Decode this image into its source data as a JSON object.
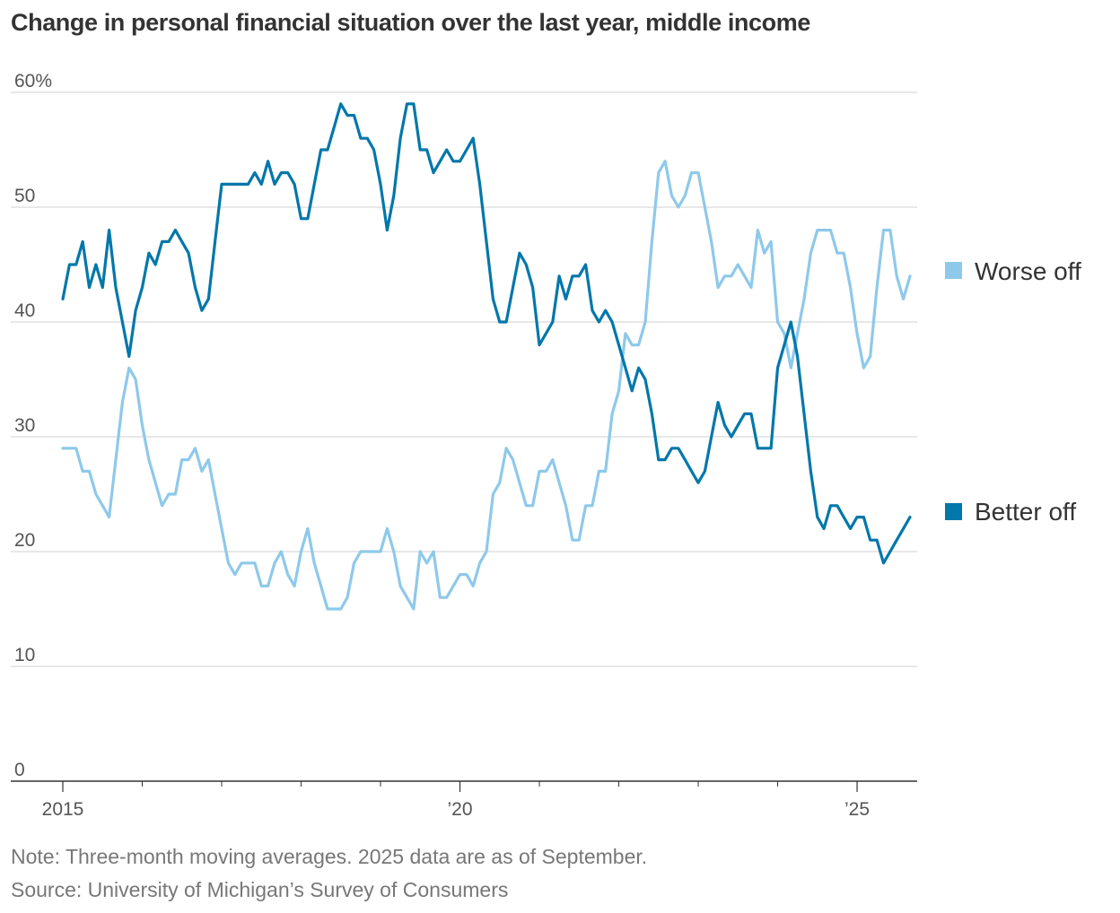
{
  "chart_data": {
    "type": "line",
    "title": "Change in personal financial situation over the last year, middle income",
    "y_ticks": [
      "0",
      "10",
      "20",
      "30",
      "40",
      "50",
      "60%"
    ],
    "y_tick_values": [
      0,
      10,
      20,
      30,
      40,
      50,
      60
    ],
    "ylim": [
      0,
      60
    ],
    "xlim": [
      2015,
      2025.92
    ],
    "x_tick_labels": [
      "2015",
      "’20",
      "’25"
    ],
    "x_tick_values": [
      2015,
      2020,
      2025
    ],
    "x_minor_ticks": [
      2016,
      2017,
      2018,
      2019,
      2021,
      2022,
      2023,
      2024
    ],
    "x_start": 2015,
    "x_step": 0.08333,
    "series": [
      {
        "name": "Worse off",
        "color": "#8ec9ea",
        "values": [
          29,
          29,
          29,
          27,
          27,
          25,
          24,
          23,
          28,
          33,
          36,
          35,
          31,
          28,
          26,
          24,
          25,
          25,
          28,
          28,
          29,
          27,
          28,
          25,
          22,
          19,
          18,
          19,
          19,
          19,
          17,
          17,
          19,
          20,
          18,
          17,
          20,
          22,
          19,
          17,
          15,
          15,
          15,
          16,
          19,
          20,
          20,
          20,
          20,
          22,
          20,
          17,
          16,
          15,
          20,
          19,
          20,
          16,
          16,
          17,
          18,
          18,
          17,
          19,
          20,
          25,
          26,
          29,
          28,
          26,
          24,
          24,
          27,
          27,
          28,
          26,
          24,
          21,
          21,
          24,
          24,
          27,
          27,
          32,
          34,
          39,
          38,
          38,
          40,
          47,
          53,
          54,
          51,
          50,
          51,
          53,
          53,
          50,
          47,
          43,
          44,
          44,
          45,
          44,
          43,
          48,
          46,
          47,
          40,
          39,
          36,
          39,
          42,
          46,
          48,
          48,
          48,
          46,
          46,
          43,
          39,
          36,
          37,
          43,
          48,
          48,
          44,
          42,
          44
        ]
      },
      {
        "name": "Better off",
        "color": "#0277aa",
        "values": [
          42,
          45,
          45,
          47,
          43,
          45,
          43,
          48,
          43,
          40,
          37,
          41,
          43,
          46,
          45,
          47,
          47,
          48,
          47,
          46,
          43,
          41,
          42,
          47,
          52,
          52,
          52,
          52,
          52,
          53,
          52,
          54,
          52,
          53,
          53,
          52,
          49,
          49,
          52,
          55,
          55,
          57,
          59,
          58,
          58,
          56,
          56,
          55,
          52,
          48,
          51,
          56,
          59,
          59,
          55,
          55,
          53,
          54,
          55,
          54,
          54,
          55,
          56,
          52,
          47,
          42,
          40,
          40,
          43,
          46,
          45,
          43,
          38,
          39,
          40,
          44,
          42,
          44,
          44,
          45,
          41,
          40,
          41,
          40,
          38,
          36,
          34,
          36,
          35,
          32,
          28,
          28,
          29,
          29,
          28,
          27,
          26,
          27,
          30,
          33,
          31,
          30,
          31,
          32,
          32,
          29,
          29,
          29,
          36,
          38,
          40,
          37,
          32,
          27,
          23,
          22,
          24,
          24,
          23,
          22,
          23,
          23,
          21,
          21,
          19,
          20,
          21,
          22,
          23
        ]
      }
    ]
  },
  "notes": {
    "note": "Note: Three-month moving averages. 2025 data are as of September.",
    "source": "Source: University of Michigan’s Survey of Consumers"
  }
}
